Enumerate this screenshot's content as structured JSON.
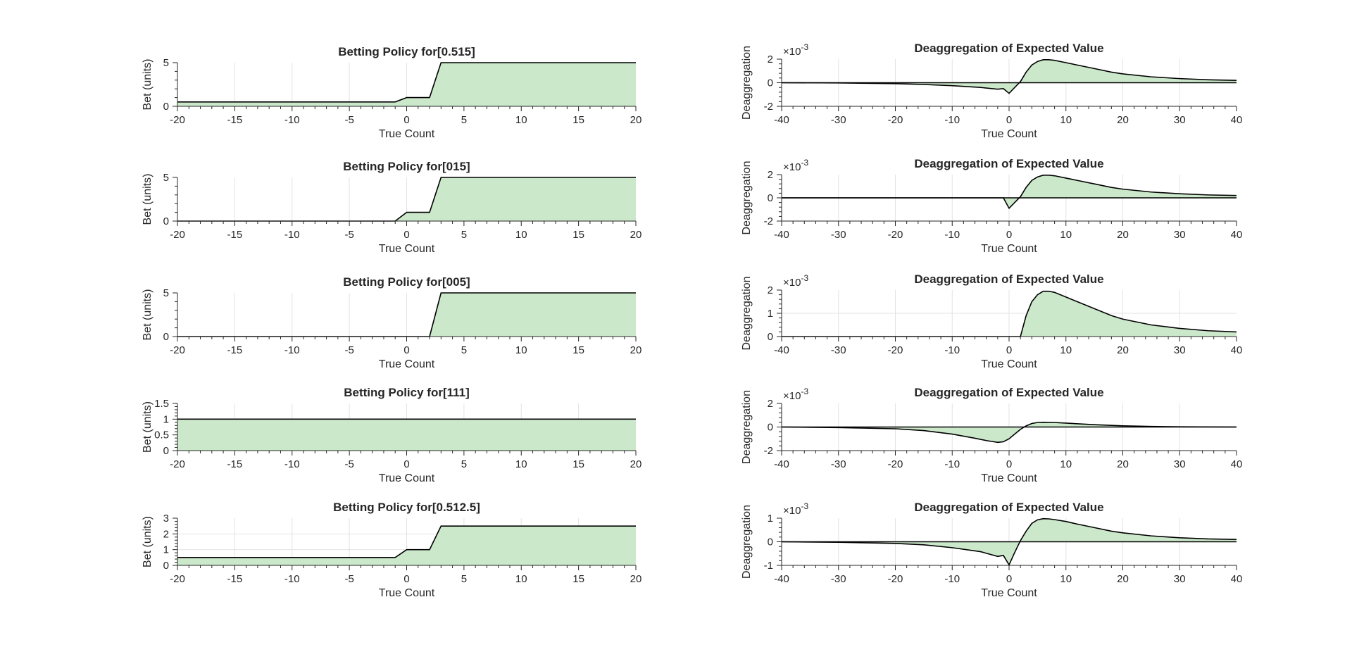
{
  "figure": {
    "colors": {
      "fill": "#cce8cb",
      "line": "#000000",
      "grid": "#e3e3e3",
      "axis": "#262626"
    }
  },
  "chart_data": [
    {
      "type": "area",
      "title": "Betting Policy for[0.515]",
      "xlabel": "True Count",
      "ylabel": "Bet (units)",
      "xlim": [
        -20,
        20
      ],
      "ylim": [
        0,
        5
      ],
      "xticks": [
        -20,
        -15,
        -10,
        -5,
        0,
        5,
        10,
        15,
        20
      ],
      "yticks": [
        0,
        5
      ],
      "grid": true,
      "x": [
        -20,
        -1,
        0,
        2,
        3,
        20
      ],
      "y": [
        0.5,
        0.5,
        1,
        1,
        5,
        5
      ]
    },
    {
      "type": "area",
      "title": "Deaggregation of Expected Value",
      "xlabel": "True Count",
      "ylabel": "Deaggregation",
      "exponent": "-3",
      "xlim": [
        -40,
        40
      ],
      "ylim": [
        -2,
        2
      ],
      "xticks": [
        -40,
        -30,
        -20,
        -10,
        0,
        10,
        20,
        30,
        40
      ],
      "yticks": [
        -2,
        0,
        2
      ],
      "grid": true,
      "x": [
        -40,
        -30,
        -20,
        -15,
        -10,
        -5,
        -2,
        -1,
        0,
        1,
        2,
        3,
        4,
        5,
        6,
        7,
        8,
        10,
        12,
        15,
        18,
        20,
        25,
        30,
        35,
        40
      ],
      "y": [
        0,
        -0.02,
        -0.08,
        -0.15,
        -0.25,
        -0.4,
        -0.55,
        -0.5,
        -0.9,
        -0.4,
        0.1,
        0.9,
        1.5,
        1.8,
        1.95,
        1.95,
        1.9,
        1.7,
        1.5,
        1.2,
        0.9,
        0.75,
        0.5,
        0.35,
        0.25,
        0.2
      ]
    },
    {
      "type": "area",
      "title": "Betting Policy for[015]",
      "xlabel": "True Count",
      "ylabel": "Bet (units)",
      "xlim": [
        -20,
        20
      ],
      "ylim": [
        0,
        5
      ],
      "xticks": [
        -20,
        -15,
        -10,
        -5,
        0,
        5,
        10,
        15,
        20
      ],
      "yticks": [
        0,
        5
      ],
      "grid": true,
      "x": [
        -20,
        -1,
        0,
        2,
        3,
        20
      ],
      "y": [
        0,
        0,
        1,
        1,
        5,
        5
      ]
    },
    {
      "type": "area",
      "title": "Deaggregation of Expected Value",
      "xlabel": "True Count",
      "ylabel": "Deaggregation",
      "exponent": "-3",
      "xlim": [
        -40,
        40
      ],
      "ylim": [
        -2,
        2
      ],
      "xticks": [
        -40,
        -30,
        -20,
        -10,
        0,
        10,
        20,
        30,
        40
      ],
      "yticks": [
        -2,
        0,
        2
      ],
      "grid": true,
      "x": [
        -40,
        -2,
        -1,
        0,
        1,
        2,
        3,
        4,
        5,
        6,
        7,
        8,
        10,
        12,
        15,
        18,
        20,
        25,
        30,
        35,
        40
      ],
      "y": [
        0,
        0,
        0,
        -0.9,
        -0.4,
        0.1,
        0.9,
        1.5,
        1.8,
        1.95,
        1.95,
        1.9,
        1.7,
        1.5,
        1.2,
        0.9,
        0.75,
        0.5,
        0.35,
        0.25,
        0.2
      ]
    },
    {
      "type": "area",
      "title": "Betting Policy for[005]",
      "xlabel": "True Count",
      "ylabel": "Bet (units)",
      "xlim": [
        -20,
        20
      ],
      "ylim": [
        0,
        5
      ],
      "xticks": [
        -20,
        -15,
        -10,
        -5,
        0,
        5,
        10,
        15,
        20
      ],
      "yticks": [
        0,
        5
      ],
      "grid": true,
      "x": [
        -20,
        2,
        3,
        20
      ],
      "y": [
        0,
        0,
        5,
        5
      ]
    },
    {
      "type": "area",
      "title": "Deaggregation of Expected Value",
      "xlabel": "True Count",
      "ylabel": "Deaggregation",
      "exponent": "-3",
      "xlim": [
        -40,
        40
      ],
      "ylim": [
        0,
        2
      ],
      "xticks": [
        -40,
        -30,
        -20,
        -10,
        0,
        10,
        20,
        30,
        40
      ],
      "yticks": [
        0,
        1,
        2
      ],
      "grid": true,
      "x": [
        -40,
        2,
        3,
        4,
        5,
        6,
        7,
        8,
        10,
        12,
        15,
        18,
        20,
        25,
        30,
        35,
        40
      ],
      "y": [
        0,
        0,
        0.9,
        1.5,
        1.8,
        1.95,
        1.95,
        1.9,
        1.7,
        1.5,
        1.2,
        0.9,
        0.75,
        0.5,
        0.35,
        0.25,
        0.2
      ]
    },
    {
      "type": "area",
      "title": "Betting Policy for[111]",
      "xlabel": "True Count",
      "ylabel": "Bet (units)",
      "xlim": [
        -20,
        20
      ],
      "ylim": [
        0,
        1.5
      ],
      "xticks": [
        -20,
        -15,
        -10,
        -5,
        0,
        5,
        10,
        15,
        20
      ],
      "yticks": [
        0,
        0.5,
        1,
        1.5
      ],
      "grid": true,
      "x": [
        -20,
        20
      ],
      "y": [
        1,
        1
      ]
    },
    {
      "type": "area",
      "title": "Deaggregation of Expected Value",
      "xlabel": "True Count",
      "ylabel": "Deaggregation",
      "exponent": "-3",
      "xlim": [
        -40,
        40
      ],
      "ylim": [
        -2,
        2
      ],
      "xticks": [
        -40,
        -30,
        -20,
        -10,
        0,
        10,
        20,
        30,
        40
      ],
      "yticks": [
        -2,
        0,
        2
      ],
      "grid": true,
      "x": [
        -40,
        -30,
        -20,
        -15,
        -10,
        -6,
        -4,
        -2,
        -1,
        0,
        1,
        2,
        3,
        4,
        5,
        6,
        8,
        10,
        15,
        20,
        25,
        30,
        40
      ],
      "y": [
        0,
        -0.05,
        -0.15,
        -0.3,
        -0.6,
        -0.95,
        -1.15,
        -1.3,
        -1.25,
        -1.0,
        -0.6,
        -0.2,
        0.1,
        0.3,
        0.38,
        0.4,
        0.38,
        0.33,
        0.2,
        0.1,
        0.05,
        0.02,
        0
      ]
    },
    {
      "type": "area",
      "title": "Betting Policy for[0.512.5]",
      "xlabel": "True Count",
      "ylabel": "Bet (units)",
      "xlim": [
        -20,
        20
      ],
      "ylim": [
        0,
        3
      ],
      "xticks": [
        -20,
        -15,
        -10,
        -5,
        0,
        5,
        10,
        15,
        20
      ],
      "yticks": [
        0,
        1,
        2,
        3
      ],
      "grid": true,
      "x": [
        -20,
        -1,
        0,
        2,
        3,
        20
      ],
      "y": [
        0.5,
        0.5,
        1,
        1,
        2.5,
        2.5
      ]
    },
    {
      "type": "area",
      "title": "Deaggregation of Expected Value",
      "xlabel": "True Count",
      "ylabel": "Deaggregation",
      "exponent": "-3",
      "xlim": [
        -40,
        40
      ],
      "ylim": [
        -1,
        1
      ],
      "xticks": [
        -40,
        -30,
        -20,
        -10,
        0,
        10,
        20,
        30,
        40
      ],
      "yticks": [
        -1,
        0,
        1
      ],
      "grid": true,
      "x": [
        -40,
        -30,
        -20,
        -15,
        -10,
        -5,
        -2,
        -1,
        0,
        1,
        2,
        3,
        4,
        5,
        6,
        7,
        8,
        10,
        12,
        15,
        18,
        20,
        25,
        30,
        35,
        40
      ],
      "y": [
        0,
        -0.02,
        -0.07,
        -0.13,
        -0.25,
        -0.42,
        -0.62,
        -0.58,
        -0.98,
        -0.45,
        0.05,
        0.45,
        0.78,
        0.93,
        0.98,
        0.97,
        0.94,
        0.86,
        0.75,
        0.6,
        0.45,
        0.38,
        0.25,
        0.17,
        0.12,
        0.1
      ]
    }
  ]
}
